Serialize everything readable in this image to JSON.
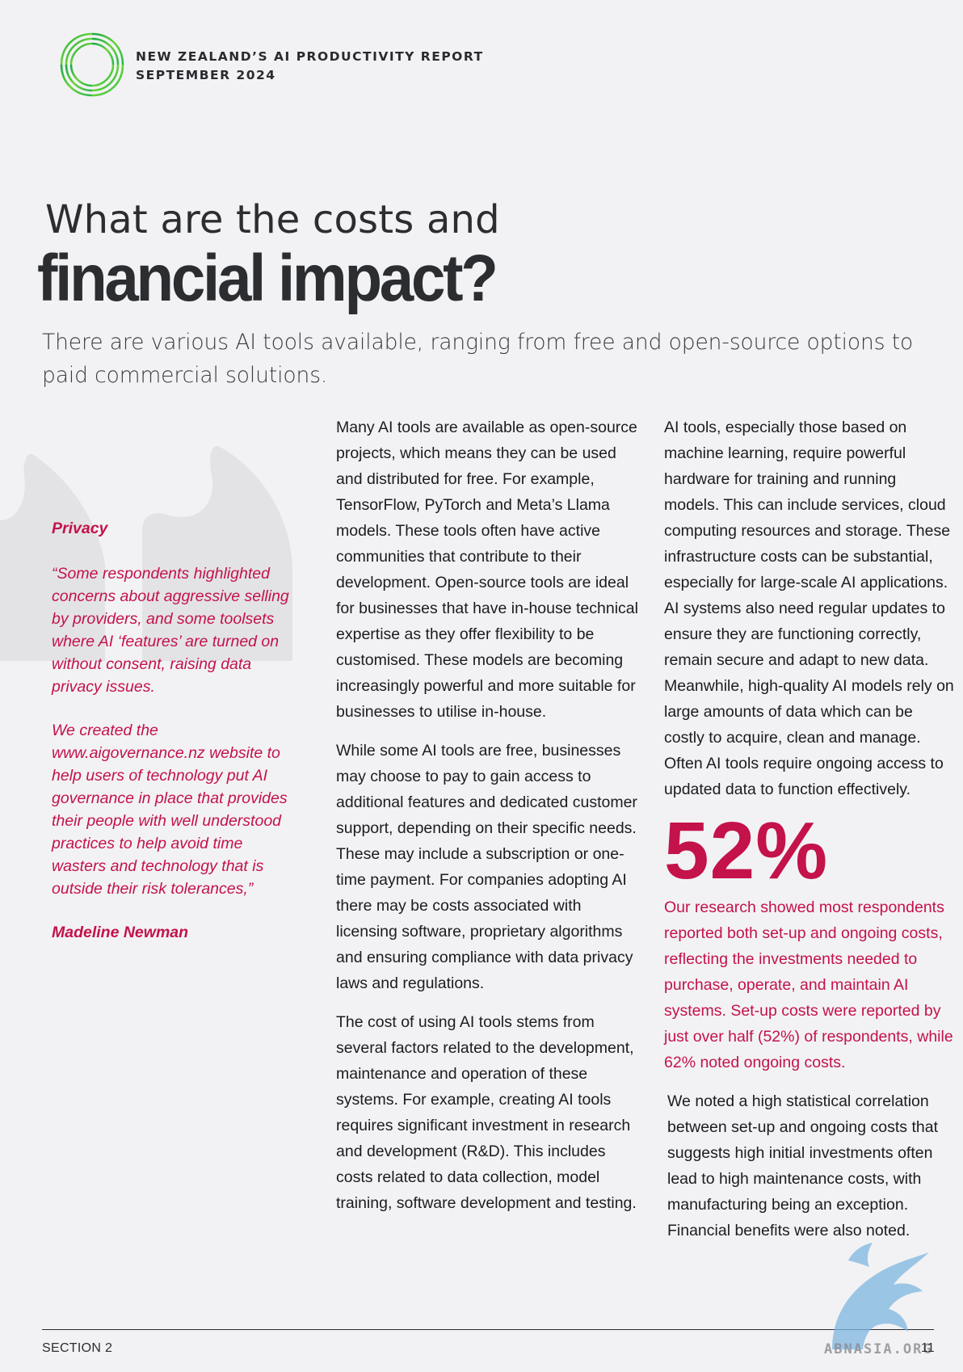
{
  "header": {
    "report_title": "NEW ZEALAND’S AI PRODUCTIVITY REPORT",
    "date": "SEPTEMBER 2024",
    "logo_icon": "ring-logo-icon"
  },
  "title": {
    "line1": "What are the costs and",
    "line2": "financial impact?"
  },
  "subtitle": "There are various AI tools available, ranging from free and open-source options to paid commercial solutions.",
  "sidebar": {
    "heading": "Privacy",
    "quote": "“Some respondents highlighted concerns about aggressive selling by providers, and some toolsets where AI ‘features’ are turned on without consent, raising data privacy issues.",
    "quote_cont": "We created the www.aigovernance.nz website to help users of technology put AI governance in place that provides their people with well understood practices to help avoid time wasters and technology that is outside their risk tolerances,”",
    "author": "Madeline Newman",
    "accent_color": "#c4124a"
  },
  "column_middle": {
    "p1": "Many AI tools are available as open-source projects, which means they can be used and distributed for free. For example, TensorFlow, PyTorch and Meta’s Llama models. These tools often have active communities that contribute to their development. Open-source tools are ideal for businesses that have in-house technical expertise as they offer flexibility to be customised. These models are becoming increasingly powerful and more suitable for businesses to utilise in-house.",
    "p2": "While some AI tools are free, businesses may choose to pay to gain access to additional features and dedicated customer support, depending on their specific needs. These may include a subscription or one-time payment. For companies adopting AI there may be costs associated with licensing software, proprietary algorithms and ensuring compliance with data privacy laws and regulations.",
    "p3": "The cost of using AI tools stems from several factors related to the development, maintenance and operation of these systems. For example, creating AI tools requires significant investment in research and development (R&D). This includes costs related to data collection, model training, software development and testing."
  },
  "column_right": {
    "p1": "AI tools, especially those based on machine learning, require powerful hardware for training and running models. This can include services, cloud computing resources and storage. These infrastructure costs can be substantial, especially for large-scale AI applications. AI systems also need regular updates to ensure they are functioning correctly, remain secure and adapt to new data. Meanwhile, high-quality AI models rely on large amounts of data which can be costly to acquire, clean and manage. Often AI tools require ongoing access to updated data to function effectively.",
    "stat_value": "52%",
    "stat_text": "Our research showed most respondents reported both set-up and ongoing costs, reflecting the investments needed to purchase, operate, and maintain AI systems. Set-up costs were reported by just over half (52%) of respondents, while 62% noted ongoing costs.",
    "p2": "We noted a high statistical correlation between set-up and ongoing costs that suggests high initial investments often lead to high maintenance costs, with manufacturing being an exception. Financial benefits were also noted."
  },
  "footer": {
    "section": "SECTION 2",
    "page": "11",
    "watermark": "ABNASIA.ORG"
  }
}
